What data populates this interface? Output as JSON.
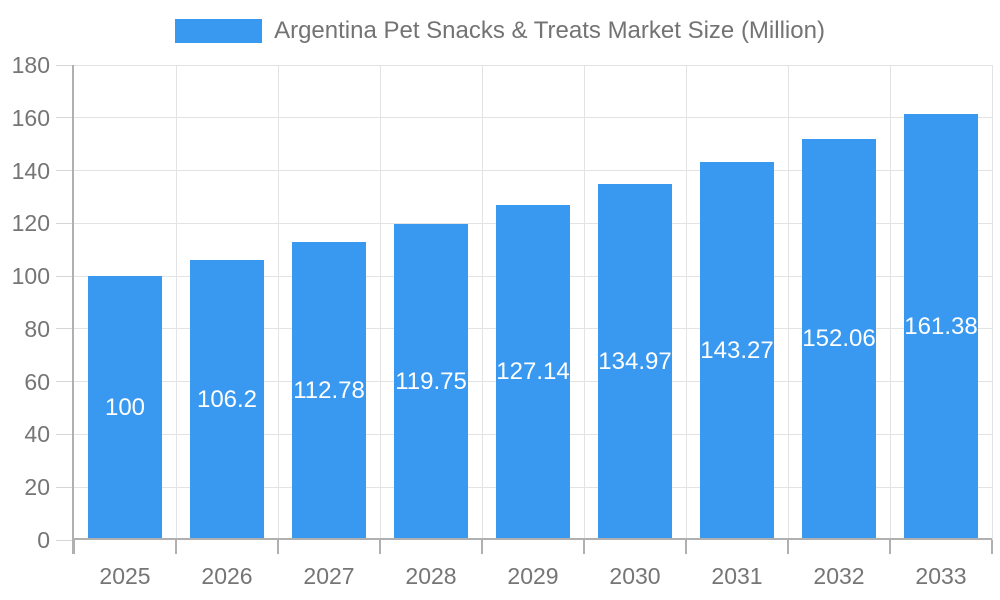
{
  "legend": {
    "label": "Argentina Pet Snacks & Treats Market Size (Million)"
  },
  "chart_data": {
    "type": "bar",
    "title": "Argentina Pet Snacks & Treats Market Size (Million)",
    "categories": [
      "2025",
      "2026",
      "2027",
      "2028",
      "2029",
      "2030",
      "2031",
      "2032",
      "2033"
    ],
    "values": [
      100,
      106.2,
      112.78,
      119.75,
      127.14,
      134.97,
      143.27,
      152.06,
      161.38
    ],
    "value_labels": [
      "100",
      "106.2",
      "112.78",
      "119.75",
      "127.14",
      "134.97",
      "143.27",
      "152.06",
      "161.38"
    ],
    "xlabel": "",
    "ylabel": "",
    "ylim": [
      0,
      180
    ],
    "ytick_step": 20,
    "yticks": [
      0,
      20,
      40,
      60,
      80,
      100,
      120,
      140,
      160,
      180
    ],
    "grid": true,
    "legend_position": "top-center",
    "colors": {
      "bar": "#3999f0",
      "value_label_text": "#ffffff",
      "axis_line": "#b0b0b0",
      "gridline": "#e3e3e3",
      "tick_label_text": "#757575",
      "legend_text": "#737373",
      "background": "#ffffff"
    }
  }
}
